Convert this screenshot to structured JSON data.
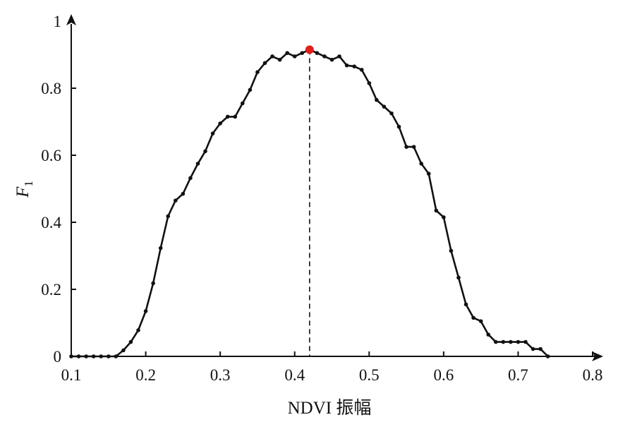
{
  "chart_data": {
    "type": "line",
    "xlabel": "NDVI 振幅",
    "ylabel": "F",
    "ylabel_subscript": "1",
    "xlim": [
      0.1,
      0.8
    ],
    "ylim": [
      0,
      1
    ],
    "x_ticks": [
      0.1,
      0.2,
      0.3,
      0.4,
      0.5,
      0.6,
      0.7,
      0.8
    ],
    "y_ticks": [
      0,
      0.2,
      0.4,
      0.6,
      0.8,
      1
    ],
    "x_tick_labels": [
      "0.1",
      "0.2",
      "0.3",
      "0.4",
      "0.5",
      "0.6",
      "0.7",
      "0.8"
    ],
    "y_tick_labels": [
      "0",
      "0.2",
      "0.4",
      "0.6",
      "0.8",
      "1"
    ],
    "grid": false,
    "line_color": "#111111",
    "highlight_color": "#e0201b",
    "series": [
      {
        "x": [
          0.1,
          0.11,
          0.12,
          0.13,
          0.14,
          0.15,
          0.16,
          0.17,
          0.18,
          0.19,
          0.2,
          0.21,
          0.22,
          0.23,
          0.24,
          0.25,
          0.26,
          0.27,
          0.28,
          0.29,
          0.3,
          0.31,
          0.32,
          0.33,
          0.34,
          0.35,
          0.36,
          0.37,
          0.38,
          0.39,
          0.4,
          0.41,
          0.42,
          0.43,
          0.44,
          0.45,
          0.46,
          0.47,
          0.48,
          0.49,
          0.5,
          0.51,
          0.52,
          0.53,
          0.54,
          0.55,
          0.56,
          0.57,
          0.58,
          0.59,
          0.6,
          0.61,
          0.62,
          0.63,
          0.64,
          0.65,
          0.66,
          0.67,
          0.68,
          0.69,
          0.7,
          0.71,
          0.72,
          0.73,
          0.74
        ],
        "values": [
          0,
          0,
          0,
          0,
          0,
          0,
          0,
          0.018,
          0.043,
          0.078,
          0.135,
          0.218,
          0.323,
          0.418,
          0.465,
          0.485,
          0.532,
          0.575,
          0.612,
          0.665,
          0.695,
          0.715,
          0.715,
          0.755,
          0.795,
          0.848,
          0.875,
          0.895,
          0.885,
          0.905,
          0.895,
          0.905,
          0.915,
          0.905,
          0.895,
          0.885,
          0.895,
          0.868,
          0.865,
          0.855,
          0.815,
          0.765,
          0.745,
          0.725,
          0.685,
          0.625,
          0.625,
          0.575,
          0.545,
          0.435,
          0.415,
          0.315,
          0.235,
          0.155,
          0.115,
          0.105,
          0.065,
          0.043,
          0.043,
          0.043,
          0.043,
          0.043,
          0.022,
          0.022,
          0
        ]
      }
    ],
    "highlight_point": {
      "x": 0.42,
      "y": 0.915
    }
  }
}
